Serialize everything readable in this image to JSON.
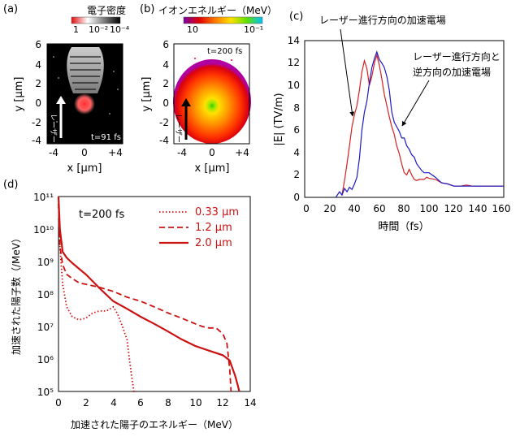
{
  "panels": {
    "a": {
      "label": "(a)",
      "colorbar_title": "電子密度",
      "colorbar_ticks": [
        "1",
        "10⁻²",
        "10⁻⁴"
      ],
      "time": "t=91 fs",
      "y_axis_label": "y [μm]",
      "x_axis_label": "x [μm]",
      "y_ticks": [
        "6",
        "4",
        "2",
        "0",
        "-2",
        "-4"
      ],
      "x_ticks": [
        "-4",
        "0",
        "+4"
      ],
      "arrow_label": "レーザー"
    },
    "b": {
      "label": "(b)",
      "colorbar_title": "イオンエネルギー（MeV）",
      "colorbar_ticks": [
        "10",
        "10⁻¹"
      ],
      "time": "t=200 fs",
      "y_axis_label": "y [μm]",
      "x_axis_label": "x [μm]",
      "y_ticks": [
        "6",
        "4",
        "2",
        "0",
        "-2",
        "-4"
      ],
      "x_ticks": [
        "-4",
        "0",
        "+4"
      ],
      "arrow_label": "レーザー"
    },
    "c": {
      "label": "(c)",
      "annotation_1": "レーザー進行方向の加速電場",
      "annotation_2_line1": "レーザー進行方向と",
      "annotation_2_line2": "逆方向の加速電場",
      "y_axis_label": "|E| (TV/m)",
      "x_axis_label": "時間（fs）",
      "y_ticks": [
        "0",
        "2",
        "4",
        "6",
        "8",
        "10",
        "12",
        "14"
      ],
      "x_ticks": [
        "0",
        "20",
        "40",
        "60",
        "80",
        "100",
        "120",
        "140",
        "160"
      ]
    },
    "d": {
      "label": "(d)",
      "time": "t=200 fs",
      "y_axis_label": "加速された陽子数（/MeV）",
      "x_axis_label": "加速された陽子のエネルギー（MeV）",
      "y_ticks": [
        "10¹¹",
        "10¹⁰",
        "10⁹",
        "10⁸",
        "10⁷",
        "10⁶",
        "10⁵"
      ],
      "x_ticks": [
        "0",
        "2",
        "4",
        "6",
        "8",
        "10",
        "12",
        "14"
      ]
    }
  },
  "colors": {
    "red": "#d62020",
    "blue": "#1a1ac8",
    "spectrum": "#cc1111"
  },
  "chart_data": [
    {
      "type": "line",
      "panel": "c",
      "xlabel": "時間（fs）",
      "ylabel": "|E| (TV/m)",
      "xlim": [
        0,
        160
      ],
      "ylim": [
        0,
        14
      ],
      "series": [
        {
          "color": "#d62020",
          "x": [
            30,
            32,
            34,
            36,
            38,
            40,
            42,
            44,
            46,
            48,
            50,
            52,
            54,
            56,
            58,
            60,
            62,
            64,
            66,
            68,
            70,
            72,
            74,
            76,
            78,
            80,
            82,
            84,
            86,
            88,
            90,
            92,
            94,
            96,
            98,
            100,
            105,
            110,
            115,
            120,
            125,
            130,
            135,
            140,
            145,
            150,
            155,
            160
          ],
          "y": [
            0.2,
            1.5,
            3.0,
            4.6,
            6.3,
            7.4,
            8.2,
            9.6,
            11.2,
            12.2,
            11.5,
            10.0,
            10.8,
            12.0,
            12.7,
            11.8,
            10.6,
            9.2,
            8.2,
            7.2,
            6.3,
            5.6,
            4.6,
            3.9,
            3.0,
            2.2,
            2.0,
            2.5,
            2.0,
            1.6,
            1.5,
            1.6,
            1.6,
            1.6,
            1.8,
            1.7,
            1.6,
            1.3,
            1.2,
            1.0,
            1.0,
            1.1,
            1.0,
            1.0,
            1.0,
            1.0,
            1.0,
            1.0
          ]
        },
        {
          "color": "#1a1ac8",
          "x": [
            25,
            28,
            30,
            32,
            34,
            36,
            38,
            40,
            42,
            44,
            46,
            48,
            50,
            52,
            54,
            56,
            58,
            60,
            62,
            64,
            66,
            68,
            70,
            72,
            74,
            76,
            78,
            80,
            82,
            84,
            86,
            88,
            90,
            92,
            94,
            96,
            98,
            100,
            105,
            110,
            115,
            120,
            125,
            130,
            135,
            140,
            145,
            150,
            155,
            160
          ],
          "y": [
            0.0,
            0.5,
            0.2,
            0.8,
            0.5,
            0.9,
            0.7,
            1.2,
            1.8,
            3.5,
            6.0,
            7.6,
            8.6,
            10.2,
            11.6,
            12.4,
            13.0,
            12.3,
            12.0,
            11.6,
            10.8,
            9.6,
            7.6,
            6.7,
            6.3,
            5.9,
            5.3,
            5.3,
            4.6,
            4.3,
            3.8,
            3.6,
            3.0,
            2.7,
            2.4,
            2.2,
            2.2,
            2.2,
            1.8,
            1.3,
            1.2,
            1.0,
            1.0,
            1.0,
            1.0,
            1.0,
            1.0,
            1.0,
            1.0,
            1.0
          ]
        }
      ]
    },
    {
      "type": "line",
      "panel": "d",
      "ylog": true,
      "xlim": [
        0,
        14
      ],
      "ylim": [
        100000,
        100000000000
      ],
      "legend_position": "top-right",
      "series": [
        {
          "name": "0.33 μm",
          "style": "dotted",
          "x": [
            0,
            0.1,
            0.3,
            0.6,
            1.0,
            1.5,
            2.0,
            2.5,
            3.0,
            3.5,
            4.0,
            4.3,
            4.6,
            5.0,
            5.3,
            5.5,
            5.6,
            5.7
          ],
          "y": [
            60000000000,
            3000000000,
            200000000,
            40000000,
            20000000,
            16000000,
            18000000,
            26000000,
            30000000,
            30000000,
            40000000,
            25000000,
            12000000,
            4000000,
            400000,
            100000,
            100000,
            100000
          ]
        },
        {
          "name": "1.2 μm",
          "style": "dashed",
          "x": [
            0,
            0.1,
            0.3,
            0.6,
            1.0,
            1.5,
            2.0,
            3.0,
            4.0,
            5.0,
            6.0,
            7.0,
            8.0,
            9.0,
            10.0,
            10.5,
            11.0,
            11.5,
            12.0,
            12.3,
            12.5,
            12.6
          ],
          "y": [
            60000000000,
            3000000000,
            800000000,
            400000000,
            300000000,
            220000000,
            200000000,
            160000000,
            120000000,
            80000000,
            60000000,
            40000000,
            26000000,
            18000000,
            12000000,
            10000000,
            9000000,
            9000000,
            6000000,
            3000000,
            500000,
            100000
          ]
        },
        {
          "name": "2.0 μm",
          "style": "solid",
          "x": [
            0,
            0.1,
            0.3,
            0.6,
            1.0,
            1.5,
            2.0,
            3.0,
            4.0,
            5.0,
            6.0,
            7.0,
            8.0,
            9.0,
            10.0,
            11.0,
            12.0,
            12.5,
            12.9,
            13.1,
            13.2
          ],
          "y": [
            100000000000,
            10000000000,
            2000000000,
            1300000000,
            900000000,
            600000000,
            400000000,
            150000000,
            60000000,
            35000000,
            20000000,
            12000000,
            7000000,
            4000000,
            2500000,
            1800000,
            1300000,
            900000,
            300000,
            150000,
            100000
          ]
        }
      ]
    }
  ]
}
